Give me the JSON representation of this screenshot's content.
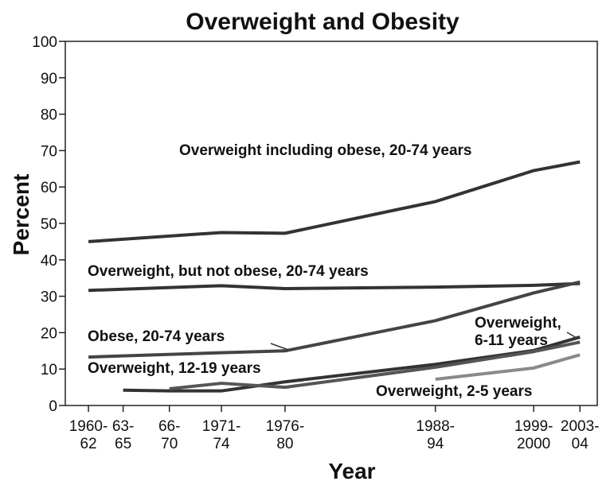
{
  "chart_data": {
    "type": "line",
    "title": "Overweight and Obesity",
    "xlabel": "Year",
    "ylabel": "Percent",
    "xlim": [
      1959,
      2005
    ],
    "ylim": [
      0,
      100
    ],
    "yticks": [
      0,
      10,
      20,
      30,
      40,
      50,
      60,
      70,
      80,
      90,
      100
    ],
    "xticks": [
      {
        "value": 1961,
        "label": "1960-\n62"
      },
      {
        "value": 1964,
        "label": "63-\n65"
      },
      {
        "value": 1968,
        "label": "66-\n70"
      },
      {
        "value": 1972.5,
        "label": "1971-\n74"
      },
      {
        "value": 1978,
        "label": "1976-\n80"
      },
      {
        "value": 1991,
        "label": "1988-\n94"
      },
      {
        "value": 1999.5,
        "label": "1999-\n2000"
      },
      {
        "value": 2003.5,
        "label": "2003-\n04"
      }
    ],
    "series": [
      {
        "name": "Overweight including obese, 20-74 years",
        "color": "#333333",
        "x": [
          1961,
          1972.5,
          1978,
          1991,
          1999.5,
          2003.5
        ],
        "values": [
          45,
          47.5,
          47.3,
          56,
          64.5,
          66.9
        ]
      },
      {
        "name": "Overweight, but not obese, 20-74 years",
        "color": "#333333",
        "x": [
          1961,
          1972.5,
          1978,
          1991,
          1999.5,
          2003.5
        ],
        "values": [
          31.6,
          32.9,
          32.1,
          32.5,
          33,
          33.5
        ]
      },
      {
        "name": "Obese, 20-74 years",
        "color": "#444444",
        "x": [
          1961,
          1972.5,
          1978,
          1991,
          1999.5,
          2003.5
        ],
        "values": [
          13.3,
          14.5,
          15,
          23.3,
          30.9,
          33.9
        ]
      },
      {
        "name": "Overweight,\n6-11 years",
        "color": "#333333",
        "x": [
          1964,
          1968,
          1972.5,
          1978,
          1991,
          1999.5,
          2003.5
        ],
        "values": [
          4.2,
          4,
          4,
          6.5,
          11.3,
          15.1,
          18.8
        ]
      },
      {
        "name": "Overweight, 12-19 years",
        "color": "#555555",
        "x": [
          1968,
          1972.5,
          1978,
          1991,
          1999.5,
          2003.5
        ],
        "values": [
          4.6,
          6.1,
          5,
          10.5,
          14.8,
          17.4
        ]
      },
      {
        "name": "Overweight, 2-5 years",
        "color": "#8a8a8a",
        "x": [
          1991,
          1999.5,
          2003.5
        ],
        "values": [
          7.2,
          10.3,
          13.9
        ]
      }
    ]
  }
}
